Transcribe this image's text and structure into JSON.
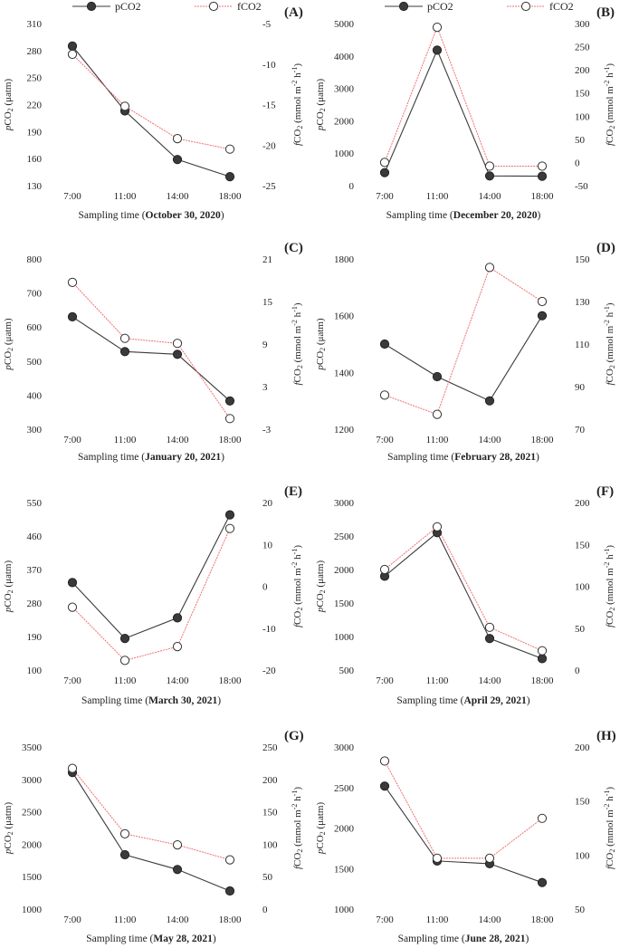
{
  "colors": {
    "pCO2": "#3a3a3a",
    "fCO2": "#f07070"
  },
  "legend": [
    {
      "name": "pCO2",
      "marker": "filled-circle",
      "line": "solid"
    },
    {
      "name": "fCO2",
      "marker": "open-circle",
      "line": "dotted"
    }
  ],
  "chart_data": [
    {
      "type": "line",
      "panel": "(A)",
      "xlabel_prefix": "Sampling time (",
      "xlabel_date": "October 30, 2020",
      "xlabel_suffix": ")",
      "categories": [
        "7:00",
        "11:00",
        "14:00",
        "18:00"
      ],
      "y_left": {
        "label": "pCO2 (μatm)",
        "ticks": [
          130,
          160,
          190,
          220,
          250,
          280,
          310
        ],
        "range": [
          130,
          310
        ]
      },
      "y_right": {
        "label": "fCO2 (mmol m-2 h-1)",
        "ticks": [
          -25,
          -20,
          -15,
          -10,
          -5
        ],
        "range": [
          -25,
          -5
        ]
      },
      "series": [
        {
          "name": "pCO2",
          "axis": "left",
          "values": [
            285,
            213,
            159,
            140
          ]
        },
        {
          "name": "fCO2",
          "axis": "right",
          "values": [
            -8.8,
            -15.2,
            -19.2,
            -20.5
          ]
        }
      ]
    },
    {
      "type": "line",
      "panel": "(B)",
      "xlabel_prefix": "Sampling time (",
      "xlabel_date": "December 20, 2020",
      "xlabel_suffix": ")",
      "categories": [
        "7:00",
        "11:00",
        "14:00",
        "18:00"
      ],
      "y_left": {
        "label": "pCO2 (μatm)",
        "ticks": [
          0,
          1000,
          2000,
          3000,
          4000,
          5000
        ],
        "range": [
          0,
          5000
        ]
      },
      "y_right": {
        "label": "fCO2 (mmol m-2 h-1)",
        "ticks": [
          -50,
          0,
          50,
          100,
          150,
          200,
          250,
          300
        ],
        "range": [
          -50,
          300
        ]
      },
      "series": [
        {
          "name": "pCO2",
          "axis": "left",
          "values": [
            400,
            4180,
            300,
            290
          ]
        },
        {
          "name": "fCO2",
          "axis": "right",
          "values": [
            0,
            292,
            -8,
            -8
          ]
        }
      ]
    },
    {
      "type": "line",
      "panel": "(C)",
      "xlabel_prefix": "Sampling time (",
      "xlabel_date": "January 20, 2021",
      "xlabel_suffix": ")",
      "categories": [
        "7:00",
        "11:00",
        "14:00",
        "18:00"
      ],
      "y_left": {
        "label": "pCO2 (μatm)",
        "ticks": [
          300,
          400,
          500,
          600,
          700,
          800
        ],
        "range": [
          300,
          800
        ]
      },
      "y_right": {
        "label": "fCO2 (mmol m-2 h-1)",
        "ticks": [
          -3,
          3,
          9,
          15,
          21
        ],
        "range": [
          -3,
          21
        ]
      },
      "series": [
        {
          "name": "pCO2",
          "axis": "left",
          "values": [
            630,
            528,
            520,
            383
          ]
        },
        {
          "name": "fCO2",
          "axis": "right",
          "values": [
            17.7,
            9.8,
            9.1,
            -1.5
          ]
        }
      ]
    },
    {
      "type": "line",
      "panel": "(D)",
      "xlabel_prefix": "Sampling time (",
      "xlabel_date": "February 28, 2021",
      "xlabel_suffix": ")",
      "categories": [
        "7:00",
        "11:00",
        "14:00",
        "18:00"
      ],
      "y_left": {
        "label": "pCO2 (μatm)",
        "ticks": [
          1200,
          1400,
          1600,
          1800
        ],
        "range": [
          1200,
          1800
        ]
      },
      "y_right": {
        "label": "fCO2 (mmol m-2 h-1)",
        "ticks": [
          70,
          90,
          110,
          130,
          150
        ],
        "range": [
          70,
          150
        ]
      },
      "series": [
        {
          "name": "pCO2",
          "axis": "left",
          "values": [
            1500,
            1385,
            1300,
            1600
          ]
        },
        {
          "name": "fCO2",
          "axis": "right",
          "values": [
            86,
            77,
            146,
            130
          ]
        }
      ]
    },
    {
      "type": "line",
      "panel": "(E)",
      "xlabel_prefix": "Sampling time (",
      "xlabel_date": "March 30, 2021",
      "xlabel_suffix": ")",
      "categories": [
        "7:00",
        "11:00",
        "14:00",
        "18:00"
      ],
      "y_left": {
        "label": "pCO2 (μatm)",
        "ticks": [
          100,
          190,
          280,
          370,
          460,
          550
        ],
        "range": [
          100,
          550
        ]
      },
      "y_right": {
        "label": "fCO2 (mmol m-2 h-1)",
        "ticks": [
          -20,
          -10,
          0,
          10,
          20
        ],
        "range": [
          -20,
          20
        ]
      },
      "series": [
        {
          "name": "pCO2",
          "axis": "left",
          "values": [
            335,
            185,
            240,
            517
          ]
        },
        {
          "name": "fCO2",
          "axis": "right",
          "values": [
            -5,
            -17.7,
            -14.4,
            13.8
          ]
        }
      ]
    },
    {
      "type": "line",
      "panel": "(F)",
      "xlabel_prefix": "Sampling time (",
      "xlabel_date": "April 29, 2021",
      "xlabel_suffix": ")",
      "categories": [
        "7:00",
        "11:00",
        "14:00",
        "18:00"
      ],
      "y_left": {
        "label": "pCO2 (μatm)",
        "ticks": [
          500,
          1000,
          1500,
          2000,
          2500,
          3000
        ],
        "range": [
          500,
          3000
        ]
      },
      "y_right": {
        "label": "fCO2 (mmol m-2 h-1)",
        "ticks": [
          0,
          50,
          100,
          150,
          200
        ],
        "range": [
          0,
          200
        ]
      },
      "series": [
        {
          "name": "pCO2",
          "axis": "left",
          "values": [
            1900,
            2550,
            970,
            670
          ]
        },
        {
          "name": "fCO2",
          "axis": "right",
          "values": [
            120,
            171,
            51,
            23
          ]
        }
      ]
    },
    {
      "type": "line",
      "panel": "(G)",
      "xlabel_prefix": "Sampling time (",
      "xlabel_date": "May 28, 2021",
      "xlabel_suffix": ")",
      "categories": [
        "7:00",
        "11:00",
        "14:00",
        "18:00"
      ],
      "y_left": {
        "label": "pCO2 (μatm)",
        "ticks": [
          1000,
          1500,
          2000,
          2500,
          3000,
          3500
        ],
        "range": [
          1000,
          3500
        ]
      },
      "y_right": {
        "label": "fCO2 (mmol m-2 h-1)",
        "ticks": [
          0,
          50,
          100,
          150,
          200,
          250
        ],
        "range": [
          0,
          250
        ]
      },
      "series": [
        {
          "name": "pCO2",
          "axis": "left",
          "values": [
            3107,
            1838,
            1611,
            1279
          ]
        },
        {
          "name": "fCO2",
          "axis": "right",
          "values": [
            217,
            116,
            99,
            76
          ]
        }
      ]
    },
    {
      "type": "line",
      "panel": "(H)",
      "xlabel_prefix": "Sampling time (",
      "xlabel_date": "June 28, 2021",
      "xlabel_suffix": ")",
      "categories": [
        "7:00",
        "11:00",
        "14:00",
        "18:00"
      ],
      "y_left": {
        "label": "pCO2 (μatm)",
        "ticks": [
          1000,
          1500,
          2000,
          2500,
          3000
        ],
        "range": [
          1000,
          3000
        ]
      },
      "y_right": {
        "label": "fCO2 (mmol m-2 h-1)",
        "ticks": [
          50,
          100,
          150,
          200
        ],
        "range": [
          50,
          200
        ]
      },
      "series": [
        {
          "name": "pCO2",
          "axis": "left",
          "values": [
            2517,
            1593,
            1560,
            1327
          ]
        },
        {
          "name": "fCO2",
          "axis": "right",
          "values": [
            187,
            97,
            97,
            134
          ]
        }
      ]
    }
  ]
}
